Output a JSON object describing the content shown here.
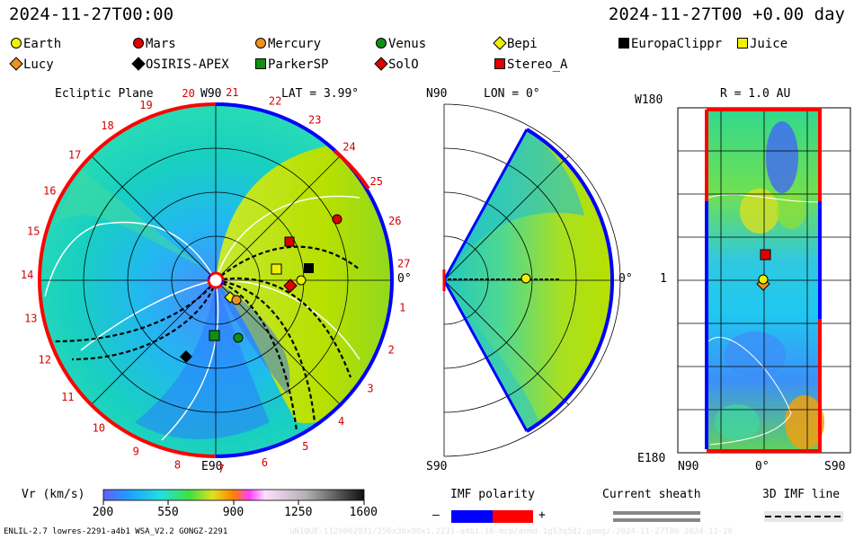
{
  "header": {
    "datetime": "2024-11-27T00:00",
    "reference": "2024-11-27T00 +0.00 day"
  },
  "legend": [
    {
      "label": "Earth",
      "marker": "circle",
      "color": "#f0f000"
    },
    {
      "label": "Mars",
      "marker": "circle",
      "color": "#e00000"
    },
    {
      "label": "Mercury",
      "marker": "circle",
      "color": "#f09020"
    },
    {
      "label": "Venus",
      "marker": "circle",
      "color": "#109010"
    },
    {
      "label": "Bepi",
      "marker": "diamond",
      "color": "#f0f000"
    },
    {
      "label": "EuropaClippr",
      "marker": "square",
      "color": "#000000"
    },
    {
      "label": "Juice",
      "marker": "square",
      "color": "#f0f000"
    },
    {
      "label": "Lucy",
      "marker": "diamond",
      "color": "#f09020"
    },
    {
      "label": "OSIRIS-APEX",
      "marker": "diamond",
      "color": "#000000"
    },
    {
      "label": "ParkerSP",
      "marker": "square",
      "color": "#109010"
    },
    {
      "label": "SolO",
      "marker": "diamond",
      "color": "#e00000"
    },
    {
      "label": "Stereo_A",
      "marker": "square",
      "color": "#e00000"
    }
  ],
  "ecliptic": {
    "title": "Ecliptic Plane",
    "top": "W90",
    "lat": "LAT = 3.99°",
    "bottom": "E90",
    "right": "0°",
    "carrington": [
      "1",
      "2",
      "3",
      "4",
      "5",
      "6",
      "7",
      "8",
      "9",
      "10",
      "11",
      "12",
      "13",
      "14",
      "15",
      "16",
      "17",
      "18",
      "19",
      "20",
      "21",
      "22",
      "23",
      "24",
      "25",
      "26",
      "27"
    ]
  },
  "meridional": {
    "lon": "LON = 0°",
    "top": "N90",
    "bottom": "S90",
    "right": "0°"
  },
  "radial": {
    "title": "R = 1.0 AU",
    "top_left": "W180",
    "mid_left": "1",
    "bottom_left": "E180",
    "x_left": "N90",
    "x_mid": "0°",
    "x_right": "S90"
  },
  "colorbar": {
    "label": "Vr (km/s)",
    "ticks": [
      "200",
      "550",
      "900",
      "1250",
      "1600"
    ]
  },
  "imf": {
    "label": "IMF polarity",
    "minus": "–",
    "plus": "+",
    "colors": {
      "negative": "#0000ff",
      "positive": "#ff0000"
    }
  },
  "sheath": {
    "label": "Current sheath"
  },
  "imf3d": {
    "label": "3D IMF line"
  },
  "footer": {
    "left": "ENLIL-2.7 lowres-2291-a4b1 WSA_V2.2 GONGZ-2291",
    "right": "UNIQUE:1129002931/256x30x90x1.2231-a4b1.16-mcp/anmd-1g53q5d2.gong/-2024-11-27T00   2024-11-26"
  }
}
